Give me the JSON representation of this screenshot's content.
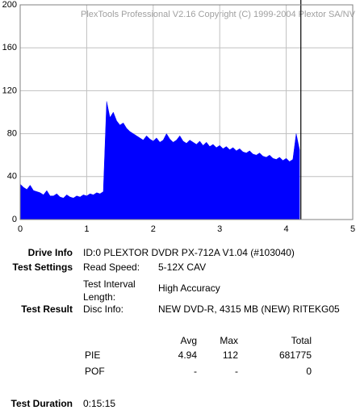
{
  "chart_data": {
    "type": "area",
    "watermark": "PlexTools Professional V2.16 Copyright (C) 1999-2004 Plextor SA/NV",
    "x": [
      0,
      0.05,
      0.1,
      0.15,
      0.2,
      0.25,
      0.3,
      0.35,
      0.4,
      0.45,
      0.5,
      0.55,
      0.6,
      0.65,
      0.7,
      0.75,
      0.8,
      0.85,
      0.9,
      0.95,
      1,
      1.05,
      1.1,
      1.15,
      1.2,
      1.25,
      1.3,
      1.35,
      1.4,
      1.45,
      1.5,
      1.55,
      1.6,
      1.65,
      1.7,
      1.75,
      1.8,
      1.85,
      1.9,
      1.95,
      2,
      2.05,
      2.1,
      2.15,
      2.2,
      2.25,
      2.3,
      2.35,
      2.4,
      2.45,
      2.5,
      2.55,
      2.6,
      2.65,
      2.7,
      2.75,
      2.8,
      2.85,
      2.9,
      2.95,
      3,
      3.05,
      3.1,
      3.15,
      3.2,
      3.25,
      3.3,
      3.35,
      3.4,
      3.45,
      3.5,
      3.55,
      3.6,
      3.65,
      3.7,
      3.75,
      3.8,
      3.85,
      3.9,
      3.95,
      4,
      4.05,
      4.1,
      4.15,
      4.2
    ],
    "values": [
      33,
      30,
      28,
      32,
      27,
      26,
      25,
      23,
      27,
      22,
      22,
      24,
      21,
      20,
      23,
      21,
      20,
      22,
      21,
      23,
      22,
      24,
      23,
      25,
      24,
      26,
      110,
      95,
      100,
      92,
      88,
      90,
      85,
      82,
      80,
      78,
      76,
      74,
      78,
      75,
      73,
      76,
      72,
      74,
      80,
      75,
      72,
      74,
      78,
      73,
      71,
      74,
      72,
      70,
      73,
      69,
      72,
      68,
      70,
      67,
      69,
      66,
      68,
      65,
      67,
      64,
      66,
      63,
      62,
      64,
      61,
      60,
      62,
      59,
      58,
      60,
      57,
      56,
      58,
      55,
      57,
      54,
      56,
      80,
      65
    ],
    "color": "#0000ff",
    "position_marker": 4.22,
    "xlim": [
      0,
      5
    ],
    "xticks": [
      0,
      1,
      2,
      3,
      4,
      5
    ],
    "ylim": [
      0,
      200
    ],
    "yticks": [
      0,
      40,
      80,
      120,
      160,
      200
    ],
    "grid": true
  },
  "info": {
    "drive_info": {
      "label": "Drive Info",
      "value": "ID:0 PLEXTOR DVDR PX-712A V1.04 (#103040)"
    },
    "test_settings": {
      "label": "Test Settings",
      "read_speed_label": "Read Speed:",
      "read_speed": "5-12X CAV",
      "interval_label": "Test Interval Length:",
      "interval": "High Accuracy"
    },
    "test_result": {
      "label": "Test Result",
      "disc_info_label": "Disc Info:",
      "disc_info": "NEW DVD-R, 4315 MB (NEW) RITEKG05"
    },
    "table": {
      "header": [
        "Avg",
        "Max",
        "Total"
      ],
      "rows": [
        [
          "PIE",
          "4.94",
          "112",
          "681775"
        ],
        [
          "POF",
          "-",
          "-",
          "0"
        ]
      ]
    },
    "test_duration": {
      "label": "Test Duration",
      "value": "0:15:15"
    }
  }
}
